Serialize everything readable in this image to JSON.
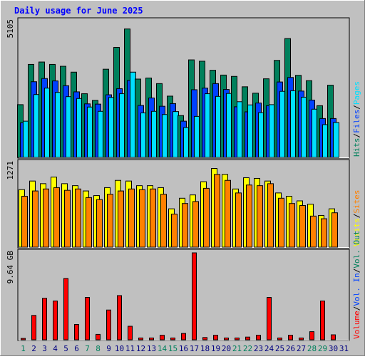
{
  "chart_data": {
    "type": "bar",
    "title": "Daily usage for June 2025",
    "colors": {
      "background": "#c0c0c0",
      "frame": "#ffffff",
      "title": "#0000ff",
      "hits": "#00805c",
      "files": "#0040ff",
      "pages": "#00e0ff",
      "visits": "#ffff00",
      "sites": "#ff8000",
      "kbytes": "#ff0000",
      "axis": "#000000",
      "weekend": "#00805c",
      "weekday": "#000080"
    },
    "x": [
      "1",
      "2",
      "3",
      "4",
      "5",
      "6",
      "7",
      "8",
      "9",
      "10",
      "11",
      "12",
      "13",
      "14",
      "15",
      "16",
      "17",
      "18",
      "19",
      "20",
      "21",
      "22",
      "23",
      "24",
      "25",
      "26",
      "27",
      "28",
      "29",
      "30",
      "31"
    ],
    "weekend_days": [
      1,
      7,
      8,
      14,
      15,
      21,
      22,
      28,
      29
    ],
    "panels": [
      {
        "id": "hits-files-pages",
        "ylabel_max": "5105",
        "ymax": 5105,
        "legend": [
          {
            "text": "Hits",
            "color": "#00805c"
          },
          {
            "text": "/",
            "color": "#000000"
          },
          {
            "text": "Files",
            "color": "#0040ff"
          },
          {
            "text": "/",
            "color": "#000000"
          },
          {
            "text": "Pages",
            "color": "#00e0ff"
          }
        ],
        "series": [
          {
            "name": "Hits",
            "color": "#00805c",
            "values": [
              1980,
              3490,
              3580,
              3490,
              3420,
              3200,
              2390,
              2140,
              3310,
              4130,
              4820,
              2940,
              2980,
              2770,
              2300,
              1570,
              3660,
              3610,
              3270,
              3090,
              3040,
              2650,
              2410,
              2950,
              3640,
              4460,
              3080,
              2880,
              1940,
              2710
            ]
          },
          {
            "name": "Files",
            "color": "#0040ff",
            "values": [
              1300,
              2840,
              2960,
              2870,
              2690,
              2460,
              2010,
              2000,
              2350,
              2580,
              2890,
              1950,
              2230,
              1920,
              2020,
              1360,
              2540,
              2600,
              2770,
              2550,
              1900,
              1710,
              2040,
              1940,
              2830,
              3000,
              2490,
              2150,
              1460,
              1460
            ]
          },
          {
            "name": "Pages",
            "color": "#00e0ff",
            "values": [
              1360,
              2360,
              2600,
              2440,
              2280,
              2210,
              1890,
              1730,
              2250,
              2390,
              3200,
              1670,
              1730,
              1610,
              1720,
              1120,
              1540,
              2390,
              2290,
              2400,
              2090,
              1970,
              1680,
              1980,
              2480,
              2500,
              2260,
              1810,
              1230,
              1310
            ]
          }
        ]
      },
      {
        "id": "visits-sites",
        "ylabel_max": "1271",
        "ymax": 1271,
        "legend": [
          {
            "text": "Visits",
            "color": "#ffff00"
          },
          {
            "text": "/",
            "color": "#000000"
          },
          {
            "text": "Sites",
            "color": "#ff8000"
          }
        ],
        "series": [
          {
            "name": "Visits",
            "color": "#ffff00",
            "values": [
              870,
              1000,
              960,
              1060,
              960,
              930,
              850,
              780,
              900,
              1010,
              1000,
              930,
              930,
              900,
              580,
              740,
              790,
              990,
              1190,
              1100,
              880,
              1050,
              1040,
              1000,
              820,
              770,
              700,
              650,
              480,
              580
            ]
          },
          {
            "name": "Sites",
            "color": "#ff8000",
            "values": [
              770,
              850,
              880,
              900,
              860,
              880,
              750,
              720,
              800,
              850,
              880,
              870,
              880,
              800,
              500,
              660,
              690,
              890,
              1100,
              1010,
              820,
              940,
              930,
              960,
              740,
              660,
              630,
              470,
              430,
              520
            ]
          }
        ]
      },
      {
        "id": "volume",
        "ylabel_max": "9.64 GB",
        "ymax": 9.64,
        "legend": [
          {
            "text": "Volume",
            "color": "#ff0000"
          },
          {
            "text": "/",
            "color": "#000000"
          },
          {
            "text": "Vol. In",
            "color": "#0040ff"
          },
          {
            "text": "/",
            "color": "#000000"
          },
          {
            "text": "Vol. Out",
            "color": "#00805c"
          }
        ],
        "series": [
          {
            "name": "Volume",
            "color": "#ff0000",
            "values": [
              0.15,
              2.7,
              4.6,
              4.3,
              6.8,
              1.7,
              4.7,
              0.6,
              3.3,
              4.9,
              1.5,
              0.2,
              0.2,
              0.5,
              0.2,
              0.7,
              9.64,
              0.25,
              0.5,
              0.2,
              0.2,
              0.3,
              0.5,
              4.7,
              0.2,
              0.5,
              0.2,
              0.9,
              4.3,
              0.55
            ]
          }
        ]
      }
    ]
  }
}
